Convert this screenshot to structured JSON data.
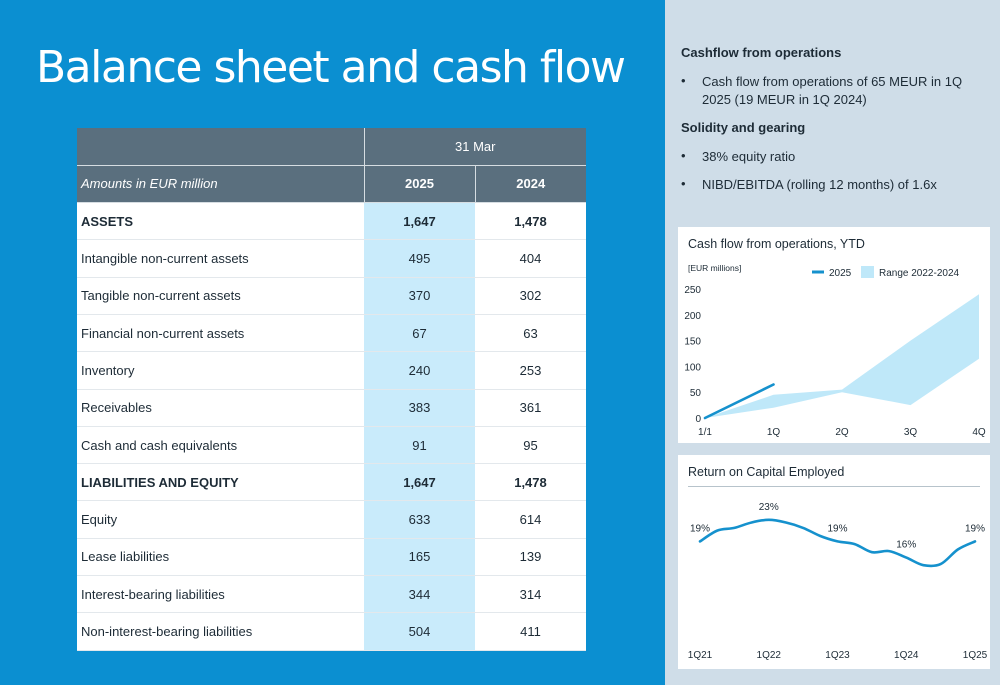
{
  "title": "Balance sheet and cash flow",
  "table": {
    "period": "31 Mar",
    "units_label": "Amounts in EUR million",
    "years": [
      "2025",
      "2024"
    ],
    "rows": [
      {
        "label": "ASSETS",
        "v2025": "1,647",
        "v2024": "1,478",
        "bold": true
      },
      {
        "label": "Intangible non-current assets",
        "v2025": "495",
        "v2024": "404"
      },
      {
        "label": "Tangible non-current assets",
        "v2025": "370",
        "v2024": "302"
      },
      {
        "label": "Financial non-current assets",
        "v2025": "67",
        "v2024": "63"
      },
      {
        "label": "Inventory",
        "v2025": "240",
        "v2024": "253"
      },
      {
        "label": "Receivables",
        "v2025": "383",
        "v2024": "361"
      },
      {
        "label": "Cash and cash equivalents",
        "v2025": "91",
        "v2024": "95"
      },
      {
        "label": "LIABILITIES AND EQUITY",
        "v2025": "1,647",
        "v2024": "1,478",
        "bold": true
      },
      {
        "label": "Equity",
        "v2025": "633",
        "v2024": "614"
      },
      {
        "label": "Lease liabilities",
        "v2025": "165",
        "v2024": "139"
      },
      {
        "label": "Interest-bearing liabilities",
        "v2025": "344",
        "v2024": "314"
      },
      {
        "label": "Non-interest-bearing liabilities",
        "v2025": "504",
        "v2024": "411"
      }
    ]
  },
  "sidebar": {
    "sections": [
      {
        "heading": "Cashflow from operations",
        "bullets": [
          "Cash flow from operations of 65 MEUR in 1Q 2025 (19 MEUR in 1Q 2024)"
        ]
      },
      {
        "heading": "Solidity and gearing",
        "bullets": [
          "38% equity ratio",
          "NIBD/EBITDA (rolling 12 months) of 1.6x"
        ]
      }
    ],
    "bullet_char": "•"
  },
  "colors": {
    "blue_panel": "#0b8fd1",
    "side_panel": "#cfdde8",
    "header_gray": "#5a6f7e",
    "highlight": "#c9ebfb",
    "line": "#1591cd",
    "range_fill": "#bfe8f9"
  },
  "chart_data": [
    {
      "type": "line",
      "title": "Cash flow from operations, YTD",
      "ylabel": "[EUR millions]",
      "categories": [
        "1/1",
        "1Q",
        "2Q",
        "3Q",
        "4Q"
      ],
      "yticks": [
        0,
        50,
        100,
        150,
        200,
        250
      ],
      "ylim": [
        0,
        250
      ],
      "series": [
        {
          "name": "2025",
          "type": "line",
          "values": [
            0,
            65,
            null,
            null,
            null
          ]
        },
        {
          "name": "Range 2022-2024",
          "type": "range",
          "low": [
            0,
            20,
            50,
            25,
            115
          ],
          "high": [
            0,
            45,
            55,
            150,
            240
          ]
        }
      ],
      "legend": "top-right",
      "grid": false
    },
    {
      "type": "line",
      "title": "Return on Capital Employed",
      "categories": [
        "1Q21",
        "1Q22",
        "1Q23",
        "1Q24",
        "1Q25"
      ],
      "x": [
        0,
        0.25,
        0.5,
        0.75,
        1,
        1.25,
        1.5,
        1.75,
        2,
        2.25,
        2.5,
        2.75,
        3,
        3.25,
        3.5,
        3.75,
        4
      ],
      "series": [
        {
          "name": "",
          "values": [
            19,
            21,
            21.5,
            22.5,
            23,
            22.5,
            21.5,
            20,
            19,
            18.5,
            17,
            17.2,
            16,
            14.6,
            14.8,
            17.5,
            19
          ]
        }
      ],
      "annotations": [
        {
          "x": 0,
          "label": "19%"
        },
        {
          "x": 1,
          "label": "23%"
        },
        {
          "x": 2,
          "label": "19%"
        },
        {
          "x": 3,
          "label": "16%"
        },
        {
          "x": 4,
          "label": "19%"
        }
      ],
      "grid": false
    }
  ]
}
